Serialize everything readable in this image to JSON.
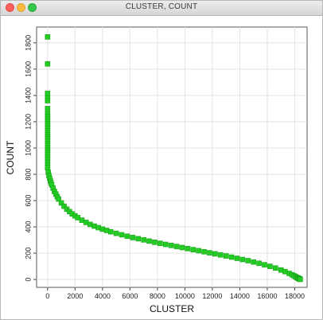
{
  "window": {
    "title": "CLUSTER, COUNT"
  },
  "chart_data": {
    "type": "scatter",
    "title": "",
    "xlabel": "CLUSTER",
    "ylabel": "COUNT",
    "xlim": [
      -800,
      18900
    ],
    "ylim": [
      -60,
      1920
    ],
    "xticks": [
      0,
      2000,
      4000,
      6000,
      8000,
      10000,
      12000,
      14000,
      16000,
      18000
    ],
    "yticks": [
      0,
      200,
      400,
      600,
      800,
      1000,
      1200,
      1400,
      1600,
      1800
    ],
    "grid": true,
    "marker_color": "#22cc22",
    "marker_edge_color": "#1aa21a",
    "series": [
      {
        "x": [
          0,
          0,
          0,
          0,
          0,
          0,
          0,
          0,
          0,
          0,
          0,
          0,
          0,
          0,
          0,
          0,
          0,
          0,
          0,
          0,
          0,
          0,
          0,
          0,
          0,
          0,
          0,
          0,
          0,
          0,
          50,
          100,
          150,
          200,
          250,
          300,
          400,
          500,
          600,
          700,
          800,
          1000,
          1200,
          1400,
          1600,
          1800,
          2000,
          2200,
          2500,
          2800,
          3100,
          3400,
          3700,
          4000,
          4300,
          4600,
          5000,
          5400,
          5800,
          6200,
          6600,
          7000,
          7400,
          7800,
          8200,
          8600,
          9000,
          9400,
          9800,
          10200,
          10600,
          11000,
          11400,
          11800,
          12200,
          12600,
          13000,
          13400,
          13800,
          14200,
          14600,
          15000,
          15400,
          15800,
          16200,
          16600,
          17000,
          17300,
          17600,
          17800,
          17950,
          18050,
          18150,
          18200,
          18250,
          18300,
          18330,
          18350,
          18370,
          18390,
          18400
        ],
        "y": [
          1845,
          1640,
          1415,
          1380,
          1360,
          1300,
          1260,
          1240,
          1220,
          1200,
          1185,
          1170,
          1150,
          1130,
          1115,
          1100,
          1085,
          1070,
          1050,
          1035,
          1020,
          1000,
          985,
          970,
          950,
          930,
          910,
          890,
          870,
          850,
          815,
          790,
          770,
          750,
          735,
          720,
          695,
          670,
          650,
          630,
          612,
          582,
          557,
          535,
          516,
          499,
          484,
          470,
          451,
          434,
          419,
          406,
          394,
          383,
          373,
          363,
          351,
          340,
          329,
          319,
          310,
          301,
          292,
          283,
          275,
          267,
          259,
          251,
          243,
          235,
          227,
          219,
          211,
          203,
          195,
          187,
          179,
          170,
          161,
          152,
          143,
          133,
          123,
          112,
          100,
          87,
          72,
          60,
          46,
          36,
          28,
          22,
          16,
          13,
          10,
          7,
          5,
          4,
          3,
          2,
          1
        ]
      }
    ]
  }
}
